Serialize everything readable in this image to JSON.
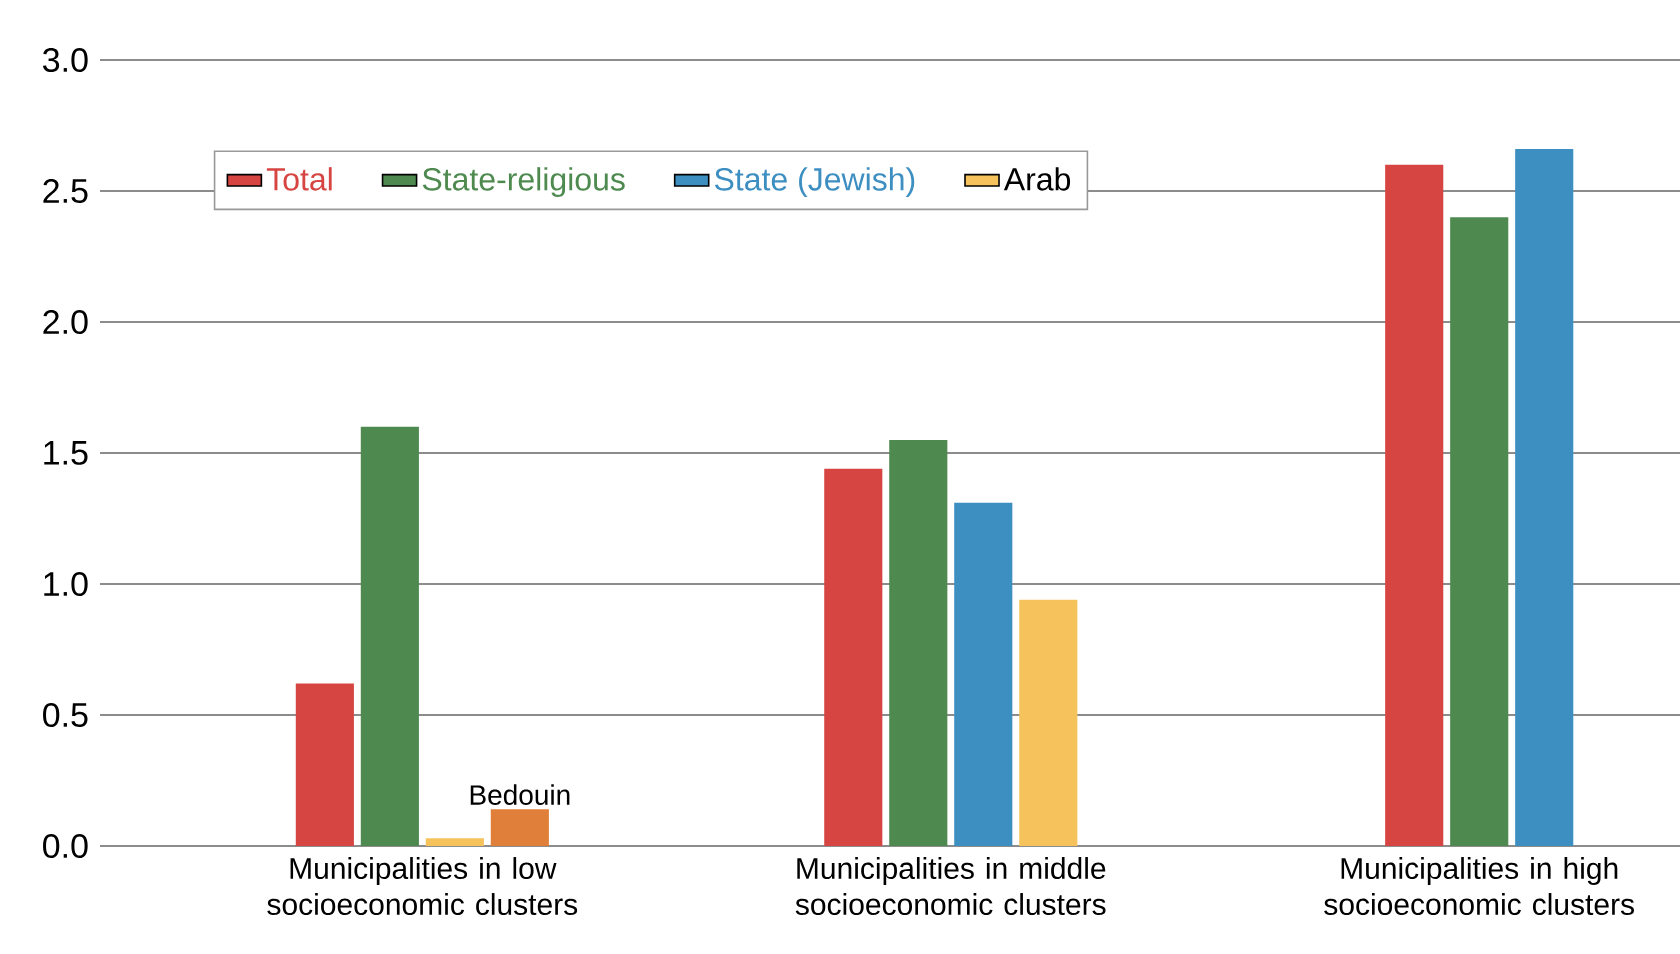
{
  "chart_data": {
    "type": "bar",
    "categories": [
      "Municipalities in low socioeconomic clusters",
      "Municipalities in middle socioeconomic clusters",
      "Municipalities in high socioeconomic clusters"
    ],
    "series": [
      {
        "name": "Total",
        "color": "#d64541",
        "values": [
          0.62,
          1.44,
          2.6
        ]
      },
      {
        "name": "State-religious",
        "color": "#4e8a4f",
        "values": [
          1.6,
          1.55,
          2.4
        ]
      },
      {
        "name": "State (Jewish)",
        "color": "#3d8ec1",
        "values": [
          null,
          1.31,
          2.66
        ]
      },
      {
        "name": "Arab",
        "color": "#f5c25b",
        "values": [
          0.03,
          0.94,
          null
        ]
      },
      {
        "color": "#e07f3a",
        "values": [
          0.14,
          null,
          null
        ]
      }
    ],
    "annotations": [
      {
        "text": "Bedouin",
        "x": "Municipalities in low socioeconomic clusters",
        "y": 0.14
      }
    ],
    "ylim": [
      0,
      3
    ],
    "yticks": [
      {
        "value": 0,
        "label": "0.0"
      },
      {
        "value": 0.5,
        "label": "0.5"
      },
      {
        "value": 1,
        "label": "1.0"
      },
      {
        "value": 1.5,
        "label": "1.5"
      },
      {
        "value": 2,
        "label": "2.0"
      },
      {
        "value": 2.5,
        "label": "2.5"
      },
      {
        "value": 3,
        "label": "3.0"
      }
    ],
    "grid": "y",
    "legend": "top left"
  }
}
